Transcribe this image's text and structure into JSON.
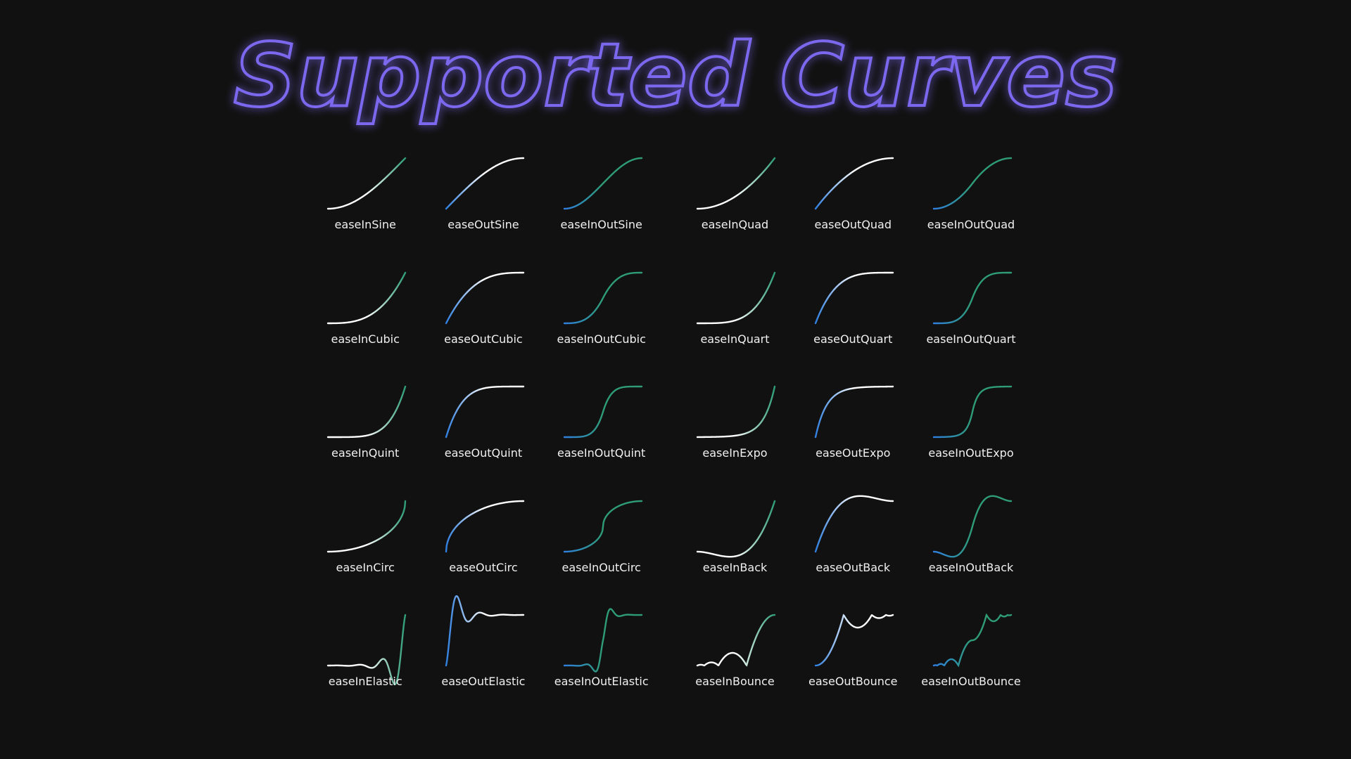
{
  "header": {
    "title": "Supported Curves"
  },
  "colors": {
    "background": "#111111",
    "title_stroke": "#7b68ee",
    "curve_white": "#ffffff",
    "curve_blue": "#2f7fe0",
    "curve_green": "#2e9d76",
    "label": "#f0f0f0"
  },
  "curves": [
    {
      "label": "easeInSine",
      "fn": "easeInSine"
    },
    {
      "label": "easeOutSine",
      "fn": "easeOutSine"
    },
    {
      "label": "easeInOutSine",
      "fn": "easeInOutSine"
    },
    {
      "label": "easeInQuad",
      "fn": "easeInQuad"
    },
    {
      "label": "easeOutQuad",
      "fn": "easeOutQuad"
    },
    {
      "label": "easeInOutQuad",
      "fn": "easeInOutQuad"
    },
    {
      "label": "easeInCubic",
      "fn": "easeInCubic"
    },
    {
      "label": "easeOutCubic",
      "fn": "easeOutCubic"
    },
    {
      "label": "easeInOutCubic",
      "fn": "easeInOutCubic"
    },
    {
      "label": "easeInQuart",
      "fn": "easeInQuart"
    },
    {
      "label": "easeOutQuart",
      "fn": "easeOutQuart"
    },
    {
      "label": "easeInOutQuart",
      "fn": "easeInOutQuart"
    },
    {
      "label": "easeInQuint",
      "fn": "easeInQuint"
    },
    {
      "label": "easeOutQuint",
      "fn": "easeOutQuint"
    },
    {
      "label": "easeInOutQuint",
      "fn": "easeInOutQuint"
    },
    {
      "label": "easeInExpo",
      "fn": "easeInExpo"
    },
    {
      "label": "easeOutExpo",
      "fn": "easeOutExpo"
    },
    {
      "label": "easeInOutExpo",
      "fn": "easeInOutExpo"
    },
    {
      "label": "easeInCirc",
      "fn": "easeInCirc"
    },
    {
      "label": "easeOutCirc",
      "fn": "easeOutCirc"
    },
    {
      "label": "easeInOutCirc",
      "fn": "easeInOutCirc"
    },
    {
      "label": "easeInBack",
      "fn": "easeInBack"
    },
    {
      "label": "easeOutBack",
      "fn": "easeOutBack"
    },
    {
      "label": "easeInOutBack",
      "fn": "easeInOutBack"
    },
    {
      "label": "easeInElastic",
      "fn": "easeInElastic"
    },
    {
      "label": "easeOutElastic",
      "fn": "easeOutElastic"
    },
    {
      "label": "easeInOutElastic",
      "fn": "easeInOutElastic"
    },
    {
      "label": "easeInBounce",
      "fn": "easeInBounce"
    },
    {
      "label": "easeOutBounce",
      "fn": "easeOutBounce"
    },
    {
      "label": "easeInOutBounce",
      "fn": "easeInOutBounce"
    }
  ]
}
